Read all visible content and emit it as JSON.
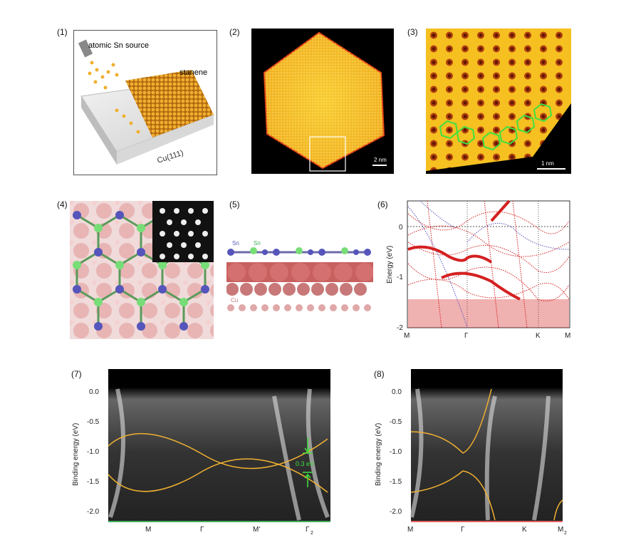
{
  "panel_labels": [
    "(1)",
    "(2)",
    "(3)",
    "(4)",
    "(5)",
    "(6)",
    "(7)",
    "(8)"
  ],
  "panel1": {
    "source_label": "atomic Sn source",
    "film_label": "stanene",
    "substrate_label": "Cu(111)"
  },
  "panel2": {
    "scalebar": "2 nm"
  },
  "panel3": {
    "scalebar": "1 nm"
  },
  "panel5": {
    "sn_label_1": "Sn",
    "sn_label_2": "Sn",
    "cu_label": "Cu"
  },
  "panel6": {
    "ylabel": "Energy (eV)",
    "yticks": [
      "0",
      "-1",
      "-2"
    ],
    "xticks": [
      "M",
      "Γ",
      "K",
      "M"
    ]
  },
  "panel7": {
    "ylabel": "Binding energy (eV)",
    "yticks": [
      "0.0",
      "-0.5",
      "-1.0",
      "-1.5",
      "-2.0"
    ],
    "xticks": [
      "M",
      "Γ",
      "M'",
      "Γ"
    ],
    "xtick_sub": "2",
    "gap_label": "0.3 eV"
  },
  "panel8": {
    "ylabel": "Binding energy (eV)",
    "yticks": [
      "0.0",
      "-0.5",
      "-1.0",
      "-1.5",
      "-2.0"
    ],
    "xticks": [
      "M",
      "Γ",
      "K",
      "M"
    ],
    "xtick_sub": "2"
  },
  "colors": {
    "gold": "#e8a23a",
    "green": "#3fae5a",
    "blue_atom": "#5555bb",
    "green_atom": "#77dd77",
    "pink": "#e8b4b4",
    "red_band": "#d42020",
    "arpes_line": "#f0b030"
  }
}
